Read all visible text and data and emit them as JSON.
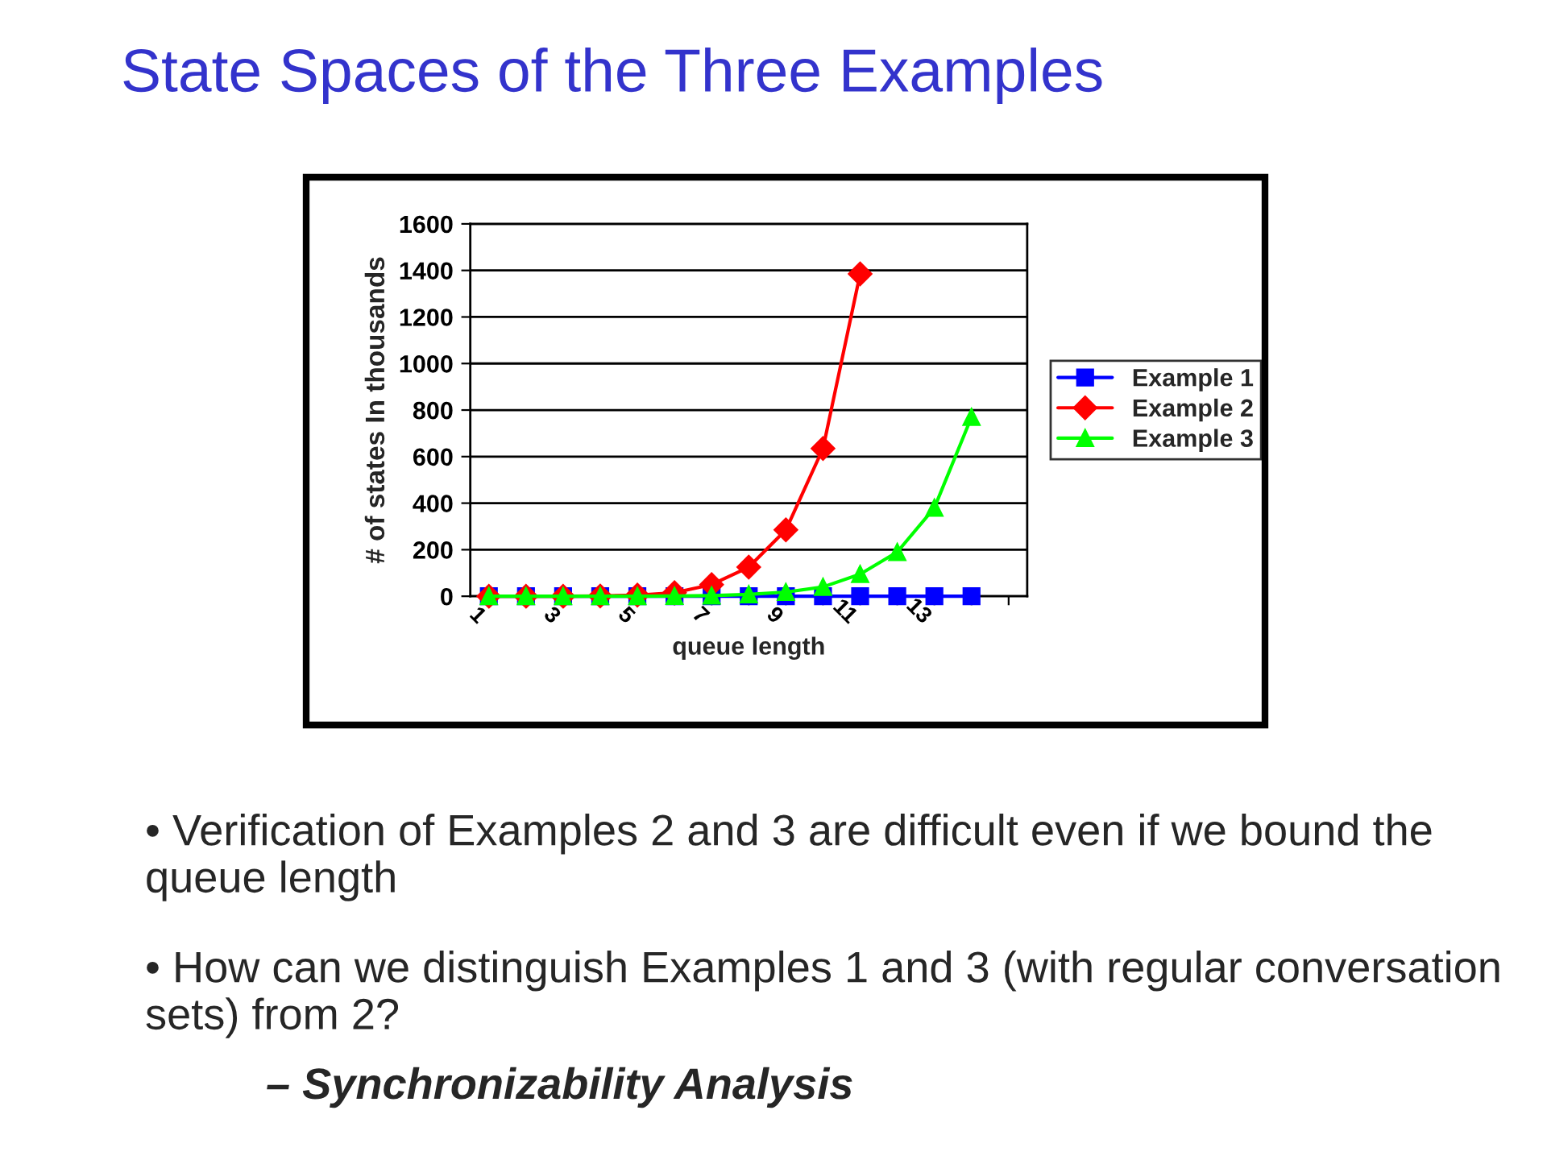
{
  "chart_data": {
    "type": "line",
    "title": "State Spaces of the Three Examples",
    "xlabel": "queue length",
    "ylabel": "# of states In thousands",
    "categories": [
      "1",
      null,
      "3",
      null,
      "5",
      null,
      "7",
      null,
      "9",
      null,
      "11",
      null,
      "13",
      null,
      null
    ],
    "series": [
      {
        "name": "Example 1",
        "color": "#0000ff",
        "marker": "square",
        "values": [
          0,
          0,
          0,
          0,
          0,
          0,
          0,
          0,
          0,
          0,
          0,
          0,
          0,
          0,
          null
        ]
      },
      {
        "name": "Example 2",
        "color": "#ff0000",
        "marker": "diamond",
        "values": [
          0,
          0,
          0,
          1,
          5,
          15,
          50,
          125,
          285,
          635,
          1385,
          null,
          null,
          null,
          null
        ]
      },
      {
        "name": "Example 3",
        "color": "#00ff00",
        "marker": "triangle",
        "values": [
          0,
          0,
          0,
          0,
          0,
          1,
          3,
          8,
          18,
          40,
          95,
          190,
          380,
          770,
          null
        ]
      }
    ],
    "ylim": [
      0,
      1600
    ],
    "yticks": [
      0,
      200,
      400,
      600,
      800,
      1000,
      1200,
      1400,
      1600
    ],
    "grid": "y",
    "legend": "right",
    "line_style": "solid",
    "annotations": [
      "• Verification of Examples 2 and 3 are difficult even if we bound the queue length",
      "• How can we distinguish Examples 1 and 3 (with regular conversation sets) from 2?",
      "– Synchronizability Analysis"
    ]
  }
}
